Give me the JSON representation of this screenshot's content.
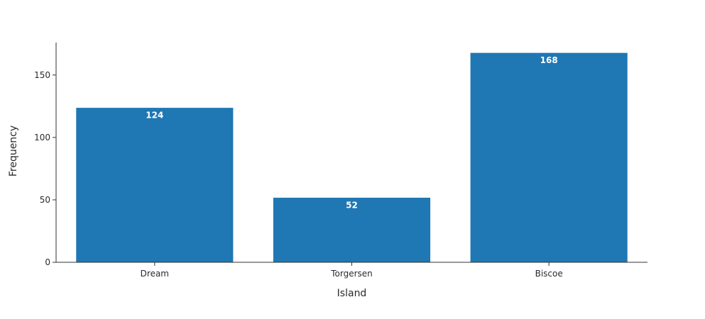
{
  "chart_data": {
    "type": "bar",
    "title": "",
    "xlabel": "Island",
    "ylabel": "Frequency",
    "categories": [
      "Dream",
      "Torgersen",
      "Biscoe"
    ],
    "values": [
      124,
      52,
      168
    ],
    "data_labels": [
      "124",
      "52",
      "168"
    ],
    "ylim": [
      0,
      176
    ],
    "yticks": [
      0,
      50,
      100,
      150
    ],
    "ytick_labels": [
      "0",
      "50",
      "100",
      "150"
    ],
    "grid": false,
    "legend": "none",
    "colors": {
      "bar": "#1f77b4",
      "bar_edge": "#ffffff",
      "axis": "#333333",
      "text": "#2a2a2a"
    }
  }
}
